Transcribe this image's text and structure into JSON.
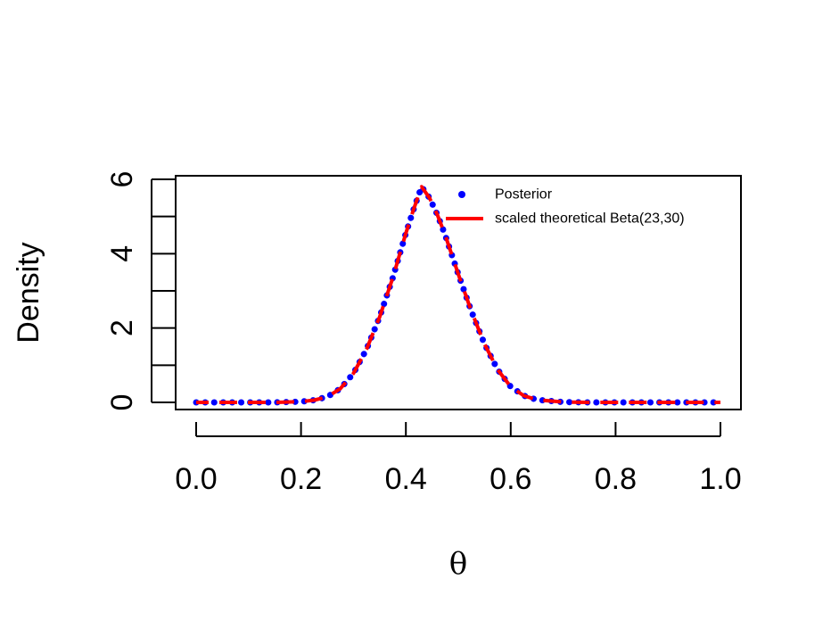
{
  "chart_data": {
    "type": "line",
    "title": "",
    "xlabel": "θ",
    "ylabel": "Density",
    "xlim": [
      0,
      1
    ],
    "ylim": [
      0,
      6
    ],
    "x_ticks": [
      0.0,
      0.2,
      0.4,
      0.6,
      0.8,
      1.0
    ],
    "x_tick_labels": [
      "0.0",
      "0.2",
      "0.4",
      "0.6",
      "0.8",
      "1.0"
    ],
    "y_ticks": [
      0,
      1,
      2,
      3,
      4,
      5,
      6
    ],
    "y_tick_labels": [
      "0",
      "",
      "2",
      "",
      "4",
      "",
      "6"
    ],
    "grid": false,
    "legend_position": "top-right",
    "series": [
      {
        "name": "Posterior",
        "style": "dotted",
        "color": "#0000ff",
        "x": [
          0.0,
          0.05,
          0.1,
          0.15,
          0.2,
          0.225,
          0.25,
          0.275,
          0.3,
          0.325,
          0.35,
          0.375,
          0.4,
          0.415,
          0.43,
          0.445,
          0.46,
          0.475,
          0.5,
          0.525,
          0.55,
          0.575,
          0.6,
          0.625,
          0.65,
          0.7,
          0.75,
          0.8,
          0.85,
          0.9,
          0.95,
          1.0
        ],
        "y": [
          0.0,
          0.0,
          0.0,
          0.0,
          0.02,
          0.06,
          0.15,
          0.37,
          0.78,
          1.43,
          2.3,
          3.35,
          4.55,
          5.2,
          5.8,
          5.5,
          5.05,
          4.5,
          3.45,
          2.45,
          1.57,
          0.88,
          0.42,
          0.18,
          0.07,
          0.01,
          0.0,
          0.0,
          0.0,
          0.0,
          0.0,
          0.0
        ]
      },
      {
        "name": "scaled theoretical Beta(23,30)",
        "style": "dashed",
        "color": "#ff0000",
        "x": [
          0.0,
          0.05,
          0.1,
          0.15,
          0.2,
          0.225,
          0.25,
          0.275,
          0.3,
          0.325,
          0.35,
          0.375,
          0.4,
          0.415,
          0.43,
          0.445,
          0.46,
          0.475,
          0.5,
          0.525,
          0.55,
          0.575,
          0.6,
          0.625,
          0.65,
          0.7,
          0.75,
          0.8,
          0.85,
          0.9,
          0.95,
          1.0
        ],
        "y": [
          0.0,
          0.0,
          0.0,
          0.0,
          0.02,
          0.06,
          0.15,
          0.37,
          0.78,
          1.43,
          2.3,
          3.35,
          4.55,
          5.2,
          5.8,
          5.5,
          5.05,
          4.5,
          3.45,
          2.45,
          1.57,
          0.88,
          0.42,
          0.18,
          0.07,
          0.01,
          0.0,
          0.0,
          0.0,
          0.0,
          0.0,
          0.0
        ]
      }
    ]
  }
}
